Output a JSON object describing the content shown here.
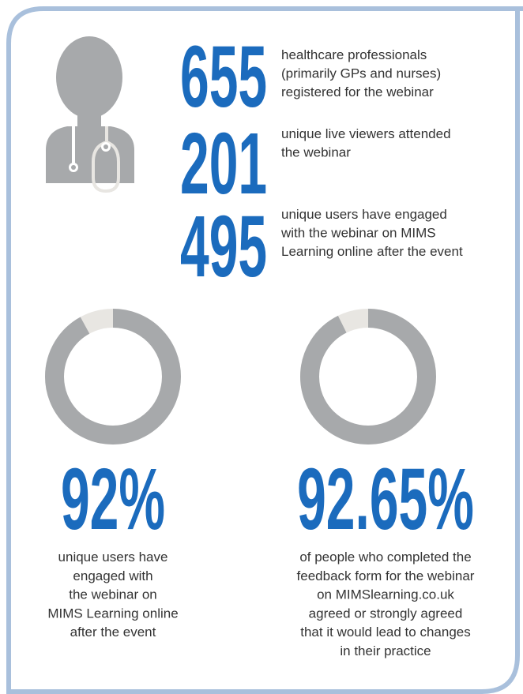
{
  "stats": [
    {
      "number": 655,
      "lines": [
        "healthcare professionals",
        "(primarily GPs and nurses)",
        "registered for the webinar"
      ]
    },
    {
      "number": 201,
      "lines": [
        "unique live viewers attended",
        "the webinar"
      ]
    },
    {
      "number": 495,
      "lines": [
        "unique users have engaged",
        "with the webinar on MIMS",
        "Learning online after the event"
      ]
    }
  ],
  "donuts": [
    {
      "value": 92,
      "label": "92%",
      "lines": [
        "unique users have",
        "engaged with",
        "the webinar on",
        "MIMS Learning online",
        "after the event"
      ]
    },
    {
      "value": 92.65,
      "label": "92.65%",
      "lines": [
        "of people who completed the",
        "feedback form for the webinar",
        "on MIMSlearning.co.uk",
        "agreed or strongly agreed",
        "that it would lead to changes",
        "in their practice"
      ]
    }
  ]
}
